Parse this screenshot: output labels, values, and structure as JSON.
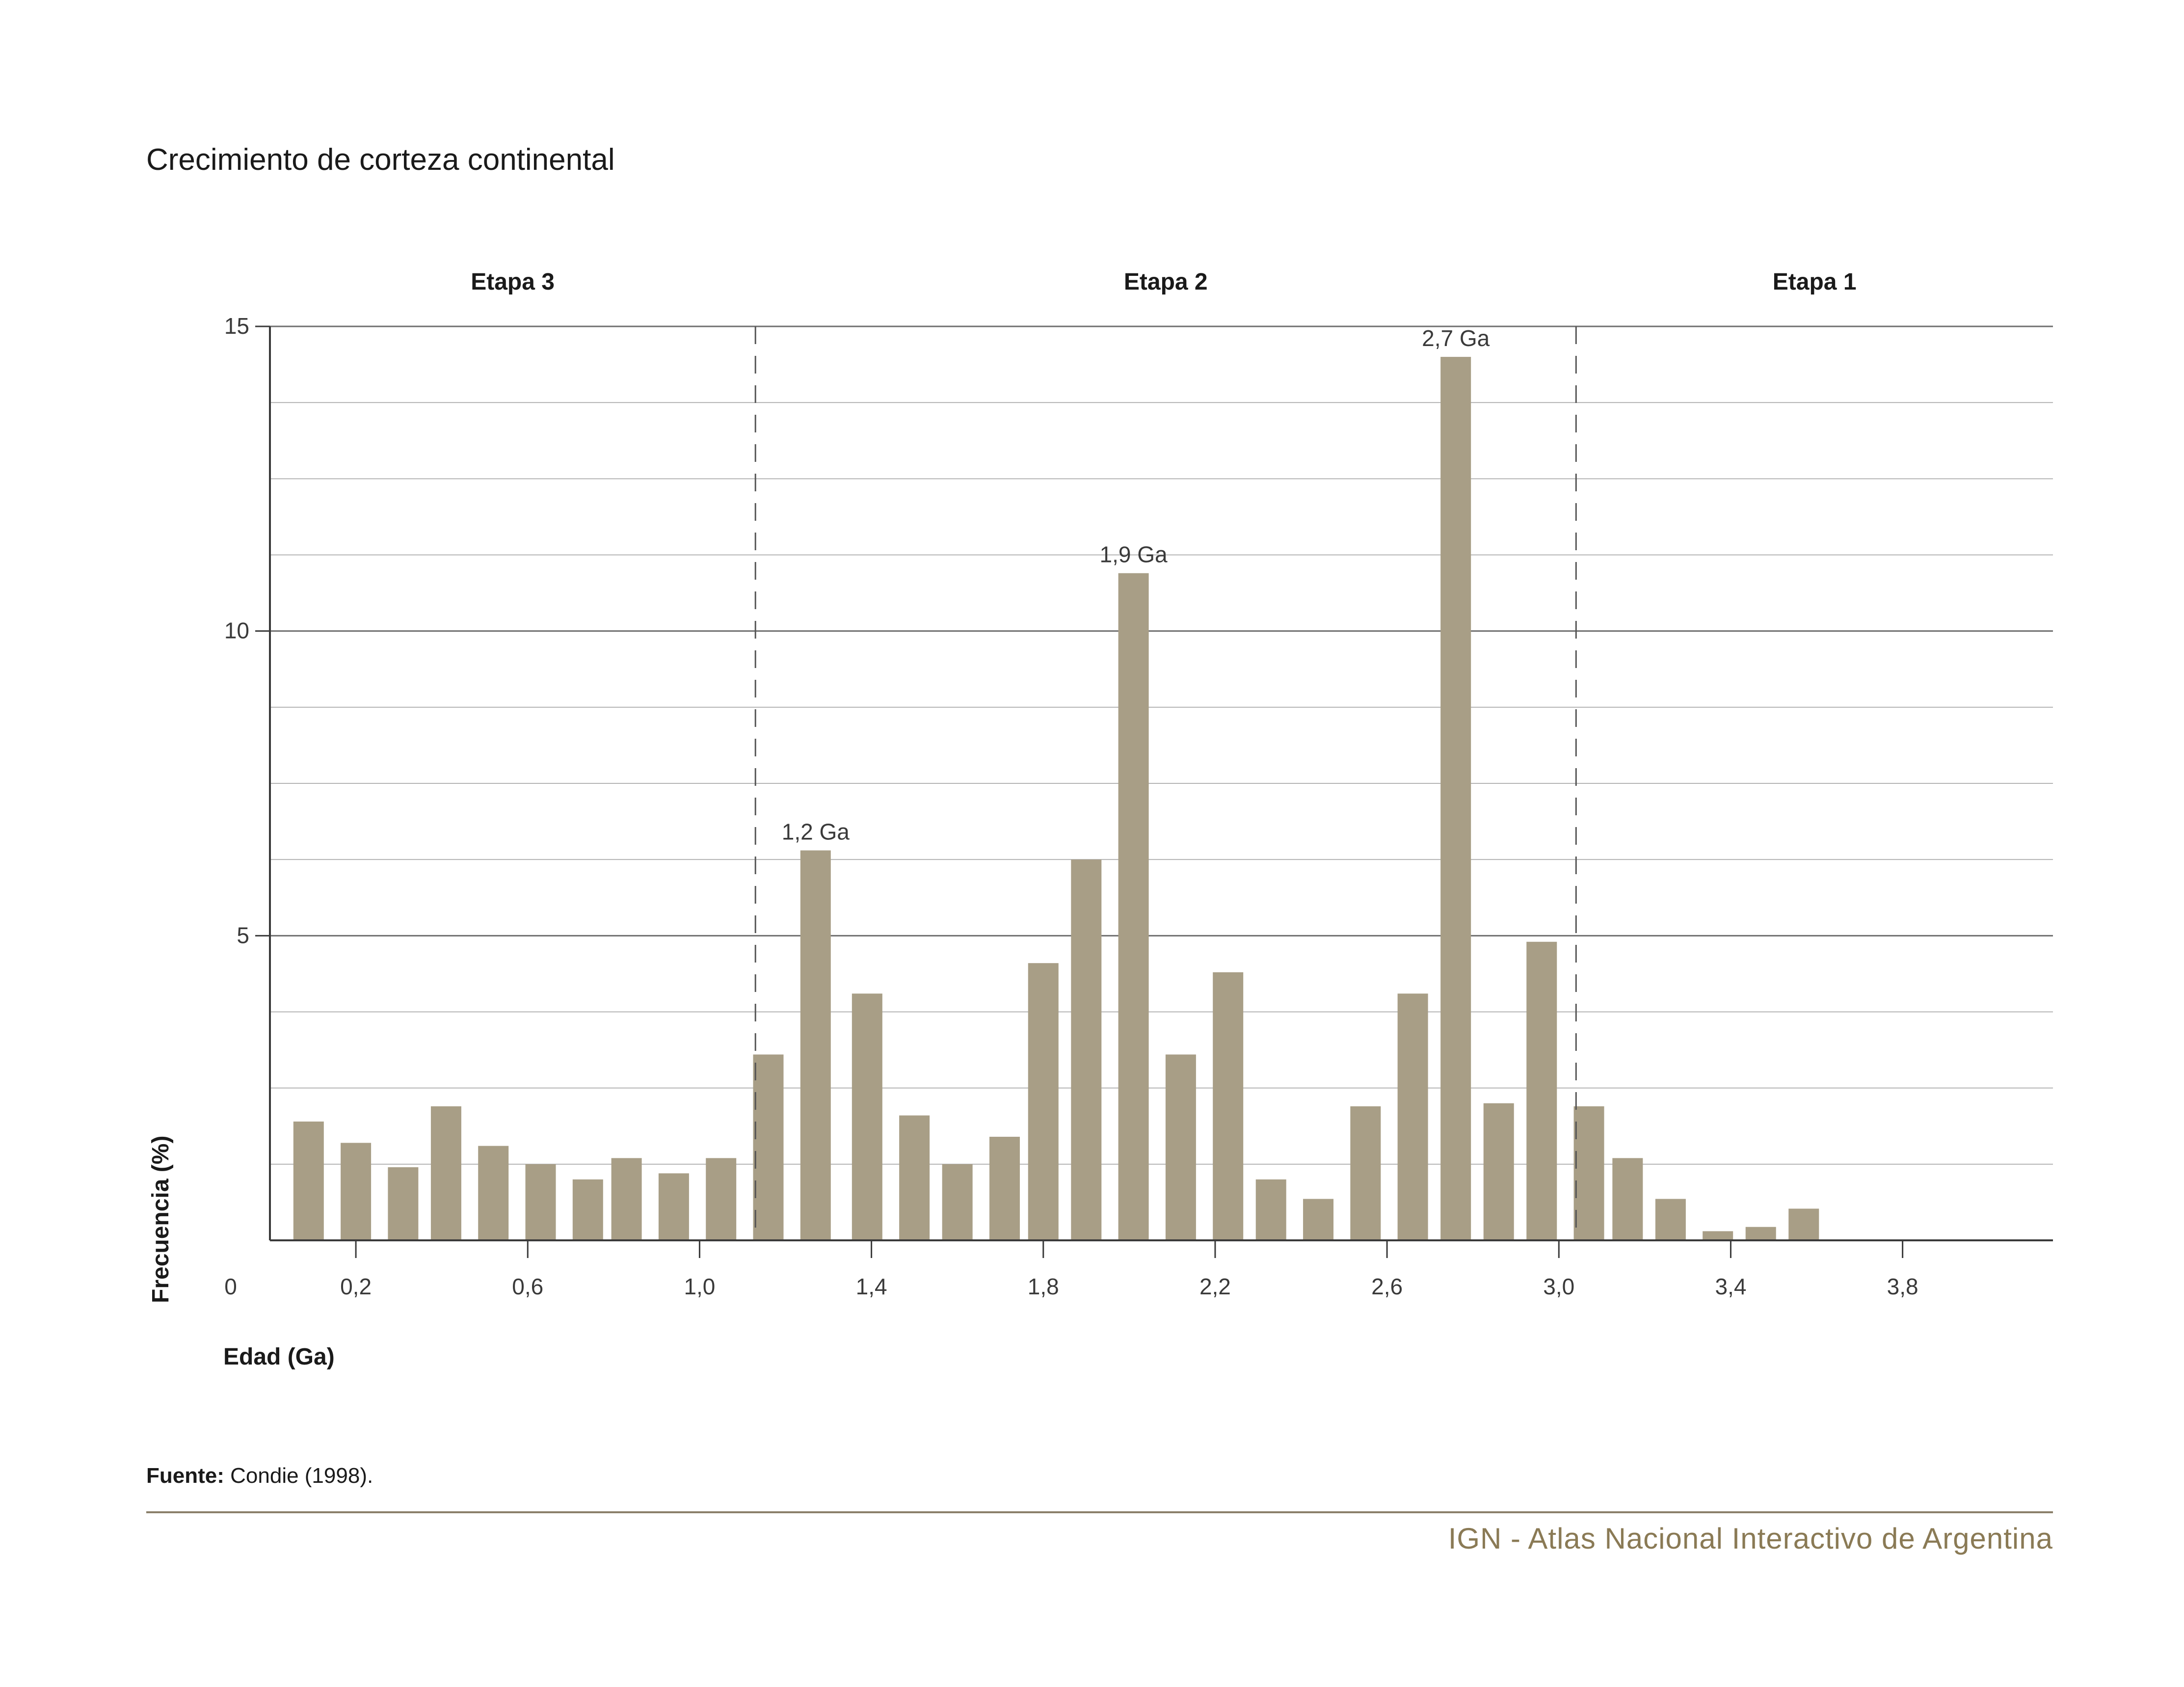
{
  "title": "Crecimiento de corteza continental",
  "source_label": "Fuente:",
  "source_text": "Condie (1998).",
  "credit": "IGN - Atlas Nacional Interactivo de Argentina",
  "colors": {
    "bar": "#a89e86",
    "grid": "#b5b5b5",
    "major_grid": "#6f6f6f",
    "axis": "#3a3a3a",
    "credit": "#8a7a55"
  },
  "chart_data": {
    "type": "bar",
    "title": "Crecimiento de corteza continental",
    "xlabel": "Edad (Ga)",
    "ylabel": "Frecuencia (%)",
    "ylim": [
      0,
      15
    ],
    "xlim": [
      0,
      4.15
    ],
    "y_ticks": [
      "0",
      "5",
      "10",
      "15"
    ],
    "x_ticks": [
      "0,2",
      "0,6",
      "1,0",
      "1,4",
      "1,8",
      "2,2",
      "2,6",
      "3,0",
      "3,4",
      "3,8"
    ],
    "x_tick_values": [
      0.2,
      0.6,
      1.0,
      1.4,
      1.8,
      2.2,
      2.6,
      3.0,
      3.4,
      3.8
    ],
    "origin_label": "0",
    "grid": true,
    "stages": [
      {
        "label": "Etapa 3",
        "from": 0,
        "to": 1.13
      },
      {
        "label": "Etapa 2",
        "from": 1.13,
        "to": 3.04
      },
      {
        "label": "Etapa 1",
        "from": 3.04,
        "to": 4.15
      }
    ],
    "stage_boundaries": [
      1.13,
      3.04
    ],
    "x": [
      0.09,
      0.2,
      0.31,
      0.41,
      0.52,
      0.63,
      0.74,
      0.83,
      0.94,
      1.05,
      1.16,
      1.27,
      1.39,
      1.5,
      1.6,
      1.71,
      1.8,
      1.9,
      2.01,
      2.12,
      2.23,
      2.33,
      2.44,
      2.55,
      2.66,
      2.76,
      2.86,
      2.96,
      3.07,
      3.16,
      3.26,
      3.37,
      3.47,
      3.57
    ],
    "values": [
      1.95,
      1.6,
      1.2,
      2.2,
      1.55,
      1.25,
      1.0,
      1.35,
      1.1,
      1.35,
      3.05,
      6.4,
      4.05,
      2.05,
      1.25,
      1.7,
      4.55,
      6.25,
      10.95,
      3.05,
      4.4,
      1.0,
      0.68,
      2.2,
      4.05,
      14.5,
      2.25,
      4.9,
      2.2,
      1.35,
      0.68,
      0.15,
      0.22,
      0.52
    ],
    "annotations": [
      {
        "text": "1,2 Ga",
        "bar_index": 11
      },
      {
        "text": "1,9 Ga",
        "bar_index": 18
      },
      {
        "text": "2,7 Ga",
        "bar_index": 25
      }
    ]
  }
}
